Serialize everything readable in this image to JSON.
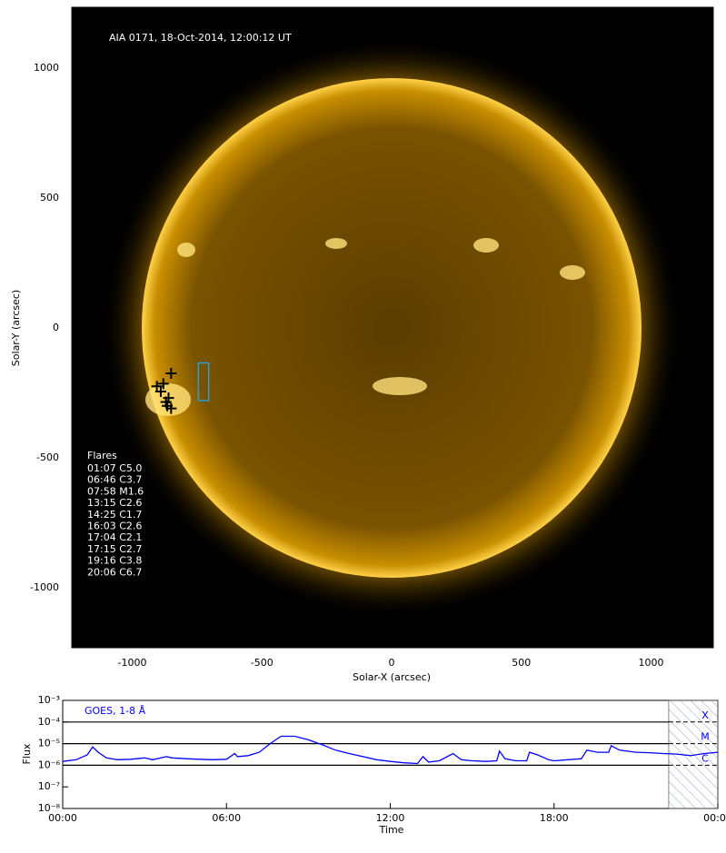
{
  "chart_data": [
    {
      "type": "image",
      "title": "AIA 0171, 18-Oct-2014, 12:00:12 UT",
      "x_label": "Solar-X (arcsec)",
      "y_label": "Solar-Y (arcsec)",
      "xlim": [
        -1233,
        1240
      ],
      "ylim": [
        -1231,
        1234
      ],
      "xticks": [
        -1000,
        -500,
        0,
        500,
        1000
      ],
      "yticks": [
        -1000,
        -500,
        0,
        500,
        1000
      ],
      "flares_heading": "Flares",
      "flares": [
        "01:07 C5.0",
        "06:46 C3.7",
        "07:58 M1.6",
        "13:15 C2.6",
        "14:25 C1.7",
        "16:03 C2.6",
        "17:04 C2.1",
        "17:15 C2.7",
        "19:16 C3.8",
        "20:06 C6.7"
      ],
      "markers": {
        "color": "#000000",
        "x": [
          -905,
          -890,
          -850,
          -860,
          -865,
          -850,
          -880,
          -870
        ],
        "y": [
          -225,
          -245,
          -175,
          -270,
          -300,
          -310,
          -215,
          -285
        ]
      },
      "box": {
        "color": "#2a9fd6",
        "x": [
          -745,
          -705
        ],
        "y": [
          -280,
          -135
        ]
      }
    },
    {
      "type": "line",
      "label": "GOES, 1-8 Å",
      "x_label": "Time",
      "y_label": "Flux",
      "log_y": true,
      "xlim": [
        0,
        24
      ],
      "ylim": [
        1e-08,
        0.001
      ],
      "xticks": [
        {
          "value": 0,
          "label": "00:00"
        },
        {
          "value": 6,
          "label": "06:00"
        },
        {
          "value": 12,
          "label": "12:00"
        },
        {
          "value": 18,
          "label": "18:00"
        },
        {
          "value": 24,
          "label": "00:00"
        }
      ],
      "yticks": [
        {
          "value": 1e-08,
          "label": "10⁻⁸"
        },
        {
          "value": 1e-07,
          "label": "10⁻⁷"
        },
        {
          "value": 1e-06,
          "label": "10⁻⁶"
        },
        {
          "value": 1e-05,
          "label": "10⁻⁵"
        },
        {
          "value": 0.0001,
          "label": "10⁻⁴"
        },
        {
          "value": 0.001,
          "label": "10⁻³"
        }
      ],
      "levels": [
        {
          "value": 0.0001,
          "label": "X"
        },
        {
          "value": 1e-05,
          "label": "M"
        },
        {
          "value": 1e-06,
          "label": "C"
        }
      ],
      "shaded_xlim": [
        22.2,
        24
      ],
      "x": [
        0,
        0.5,
        0.9,
        1.1,
        1.3,
        1.6,
        2,
        2.5,
        3,
        3.3,
        3.8,
        4,
        4.5,
        5,
        5.5,
        6,
        6.3,
        6.4,
        6.8,
        7.2,
        7.6,
        8,
        8.5,
        9,
        9.5,
        10,
        10.5,
        11,
        11.5,
        12,
        12.5,
        13,
        13.2,
        13.4,
        13.8,
        14.3,
        14.6,
        15,
        15.5,
        15.9,
        16,
        16.2,
        16.6,
        17,
        17.1,
        17.4,
        17.8,
        18,
        18.5,
        19,
        19.2,
        19.6,
        20,
        20.1,
        20.4,
        21,
        21.5,
        22,
        22.5,
        23,
        23.5,
        24
      ],
      "series": [
        {
          "name": "GOES, 1-8 Å",
          "color": "#0000ff",
          "values": [
            1.5e-06,
            1.8e-06,
            3e-06,
            7e-06,
            4e-06,
            2.2e-06,
            1.8e-06,
            1.9e-06,
            2.2e-06,
            1.8e-06,
            2.5e-06,
            2.2e-06,
            2e-06,
            1.9e-06,
            1.8e-06,
            1.9e-06,
            3.5e-06,
            2.5e-06,
            2.8e-06,
            4e-06,
            1e-05,
            2.2e-05,
            2.2e-05,
            1.5e-05,
            9e-06,
            5e-06,
            3.5e-06,
            2.5e-06,
            1.8e-06,
            1.5e-06,
            1.3e-06,
            1.2e-06,
            2.5e-06,
            1.4e-06,
            1.6e-06,
            3.5e-06,
            1.8e-06,
            1.6e-06,
            1.5e-06,
            1.6e-06,
            4.5e-06,
            2e-06,
            1.6e-06,
            1.6e-06,
            4e-06,
            3e-06,
            1.8e-06,
            1.6e-06,
            1.8e-06,
            2e-06,
            5e-06,
            4e-06,
            4e-06,
            8e-06,
            5e-06,
            4e-06,
            3.8e-06,
            3.5e-06,
            3.3e-06,
            2.8e-06,
            3.5e-06,
            4e-06
          ]
        }
      ]
    }
  ]
}
